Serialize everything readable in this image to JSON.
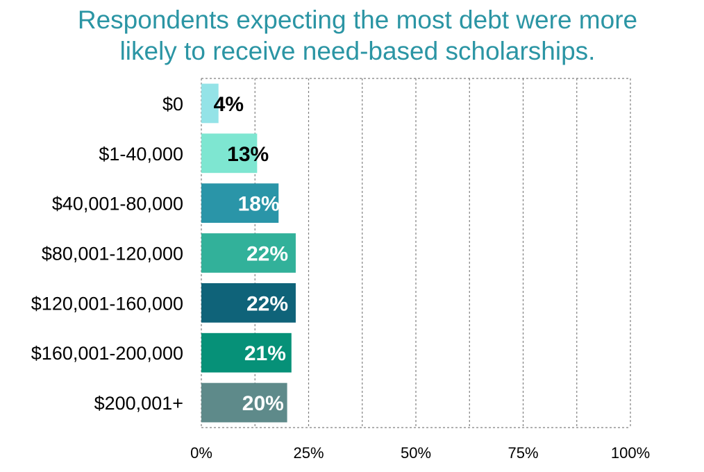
{
  "title_lines": [
    "Respondents expecting the most debt were more",
    "likely to receive need-based scholarships."
  ],
  "colors": {
    "title": "#2B95A4",
    "grid": "#7F7F7F"
  },
  "chart_data": {
    "type": "bar",
    "orientation": "horizontal",
    "title": "Respondents expecting the most debt were more likely to receive need-based scholarships.",
    "categories": [
      "$0",
      "$1-40,000",
      "$40,001-80,000",
      "$80,001-120,000",
      "$120,001-160,000",
      "$160,001-200,000",
      "$200,001+"
    ],
    "values": [
      4,
      13,
      18,
      22,
      22,
      21,
      20
    ],
    "labels": [
      "4%",
      "13%",
      "18%",
      "22%",
      "22%",
      "21%",
      "20%"
    ],
    "bar_colors": [
      "#94E3E7",
      "#7EE6D1",
      "#2A95A8",
      "#32B19A",
      "#0F6379",
      "#069178",
      "#5E8A8A"
    ],
    "label_colors": [
      "#000000",
      "#000000",
      "#FFFFFF",
      "#FFFFFF",
      "#FFFFFF",
      "#FFFFFF",
      "#FFFFFF"
    ],
    "xlim": [
      0,
      100
    ],
    "x_ticks": [
      0,
      25,
      50,
      75,
      100
    ],
    "x_tick_labels": [
      "0%",
      "25%",
      "50%",
      "75%",
      "100%"
    ],
    "xlabel": "",
    "ylabel": "",
    "grid": true,
    "legend": "none"
  }
}
